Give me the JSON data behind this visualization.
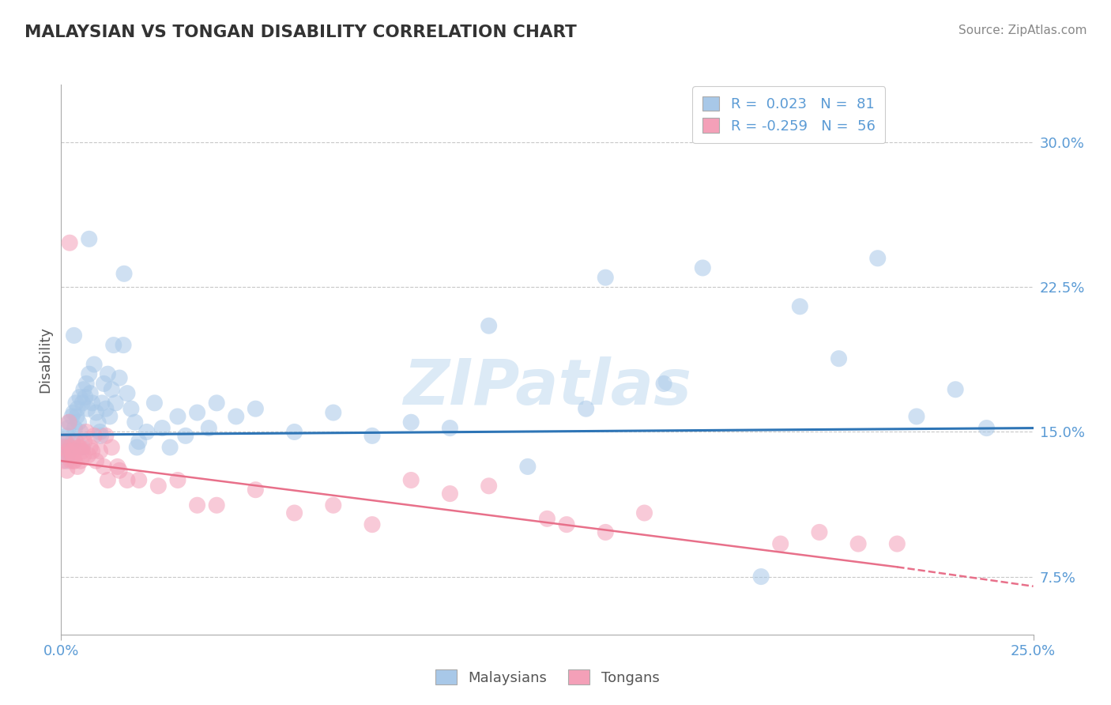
{
  "title": "MALAYSIAN VS TONGAN DISABILITY CORRELATION CHART",
  "source": "Source: ZipAtlas.com",
  "ylabel": "Disability",
  "yticks": [
    7.5,
    15.0,
    22.5,
    30.0
  ],
  "ytick_labels": [
    "7.5%",
    "15.0%",
    "22.5%",
    "30.0%"
  ],
  "xlim": [
    0.0,
    25.0
  ],
  "ylim": [
    4.5,
    33.0
  ],
  "color_blue": "#A8C8E8",
  "color_pink": "#F4A0B8",
  "color_blue_line": "#2E75B6",
  "color_pink_line": "#E8708A",
  "color_blue_text": "#5B9BD5",
  "watermark": "ZIPatlas",
  "background": "#FFFFFF",
  "grid_color": "#C8C8C8",
  "R1": "0.023",
  "N1": "81",
  "R2": "-0.259",
  "N2": "56",
  "blue_line_x0": 0.0,
  "blue_line_y0": 14.85,
  "blue_line_x1": 25.0,
  "blue_line_y1": 15.2,
  "pink_line_x0": 0.0,
  "pink_line_y0": 13.5,
  "pink_line_x1_solid": 21.5,
  "pink_line_y1_solid": 8.0,
  "pink_line_x1_dash": 25.0,
  "pink_line_y1_dash": 7.0,
  "malaysian_x": [
    0.05,
    0.08,
    0.1,
    0.12,
    0.14,
    0.16,
    0.18,
    0.2,
    0.22,
    0.25,
    0.28,
    0.3,
    0.32,
    0.35,
    0.38,
    0.4,
    0.42,
    0.45,
    0.48,
    0.5,
    0.55,
    0.58,
    0.62,
    0.65,
    0.68,
    0.72,
    0.75,
    0.8,
    0.85,
    0.9,
    0.95,
    1.0,
    1.05,
    1.1,
    1.15,
    1.2,
    1.25,
    1.3,
    1.4,
    1.5,
    1.6,
    1.7,
    1.8,
    1.9,
    2.0,
    2.2,
    2.4,
    2.6,
    2.8,
    3.0,
    3.2,
    3.5,
    3.8,
    4.0,
    4.5,
    5.0,
    6.0,
    7.0,
    8.0,
    9.0,
    10.0,
    11.0,
    12.0,
    13.5,
    14.0,
    15.5,
    16.5,
    18.0,
    19.0,
    20.0,
    21.0,
    22.0,
    23.0,
    23.8,
    0.33,
    0.55,
    0.72,
    1.02,
    1.35,
    1.62,
    1.95
  ],
  "malaysian_y": [
    14.2,
    13.8,
    14.5,
    14.0,
    13.5,
    14.8,
    15.2,
    14.0,
    15.5,
    14.2,
    15.8,
    14.5,
    16.0,
    15.2,
    16.5,
    15.8,
    16.2,
    15.5,
    16.8,
    15.0,
    16.5,
    17.2,
    16.8,
    17.5,
    16.2,
    18.0,
    17.0,
    16.5,
    18.5,
    16.0,
    15.5,
    15.0,
    16.5,
    17.5,
    16.2,
    18.0,
    15.8,
    17.2,
    16.5,
    17.8,
    19.5,
    17.0,
    16.2,
    15.5,
    14.5,
    15.0,
    16.5,
    15.2,
    14.2,
    15.8,
    14.8,
    16.0,
    15.2,
    16.5,
    15.8,
    16.2,
    15.0,
    16.0,
    14.8,
    15.5,
    15.2,
    20.5,
    13.2,
    16.2,
    23.0,
    17.5,
    23.5,
    7.5,
    21.5,
    18.8,
    24.0,
    15.8,
    17.2,
    15.2,
    20.0,
    14.2,
    25.0,
    14.8,
    19.5,
    23.2,
    14.2
  ],
  "tongan_x": [
    0.05,
    0.08,
    0.1,
    0.12,
    0.15,
    0.18,
    0.2,
    0.22,
    0.25,
    0.28,
    0.3,
    0.35,
    0.38,
    0.42,
    0.45,
    0.5,
    0.55,
    0.6,
    0.65,
    0.7,
    0.75,
    0.8,
    0.9,
    1.0,
    1.1,
    1.2,
    1.3,
    1.5,
    1.7,
    2.0,
    2.5,
    3.0,
    3.5,
    4.0,
    5.0,
    6.0,
    7.0,
    8.0,
    9.0,
    10.0,
    11.0,
    12.5,
    13.0,
    14.0,
    15.0,
    18.5,
    19.5,
    20.5,
    21.5,
    0.22,
    0.32,
    0.48,
    0.58,
    0.85,
    1.15,
    1.45
  ],
  "tongan_y": [
    13.5,
    14.2,
    13.8,
    14.5,
    13.0,
    14.0,
    15.5,
    14.2,
    13.5,
    14.0,
    13.8,
    13.5,
    14.5,
    13.2,
    14.2,
    13.5,
    14.0,
    14.5,
    15.0,
    13.8,
    14.2,
    14.0,
    13.5,
    14.0,
    13.2,
    12.5,
    14.2,
    13.0,
    12.5,
    12.5,
    12.2,
    12.5,
    11.2,
    11.2,
    12.0,
    10.8,
    11.2,
    10.2,
    12.5,
    11.8,
    12.2,
    10.5,
    10.2,
    9.8,
    10.8,
    9.2,
    9.8,
    9.2,
    9.2,
    24.8,
    13.5,
    14.2,
    13.8,
    14.8,
    14.8,
    13.2
  ]
}
